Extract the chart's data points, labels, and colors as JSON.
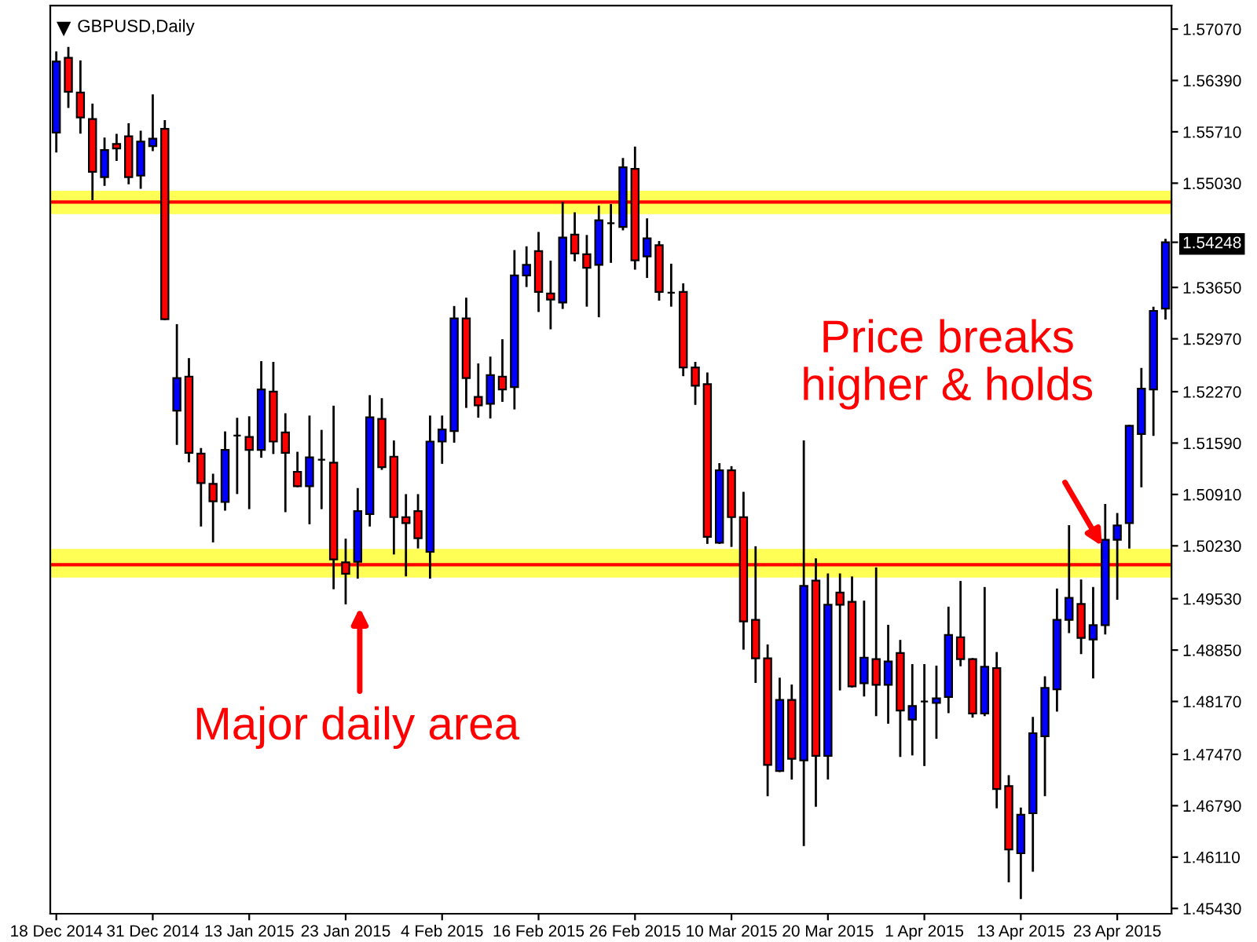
{
  "chart_data": {
    "type": "candlestick",
    "title": "GBPUSD,Daily",
    "categories": [
      "18 Dec 2014",
      null,
      null,
      null,
      null,
      null,
      null,
      null,
      "31 Dec 2014",
      null,
      null,
      null,
      null,
      null,
      null,
      null,
      "13 Jan 2015",
      null,
      null,
      null,
      null,
      null,
      null,
      null,
      "23 Jan 2015",
      null,
      null,
      null,
      null,
      null,
      null,
      null,
      "4 Feb 2015",
      null,
      null,
      null,
      null,
      null,
      null,
      null,
      "16 Feb 2015",
      null,
      null,
      null,
      null,
      null,
      null,
      null,
      "26 Feb 2015",
      null,
      null,
      null,
      null,
      null,
      null,
      null,
      "10 Mar 2015",
      null,
      null,
      null,
      null,
      null,
      null,
      null,
      "20 Mar 2015",
      null,
      null,
      null,
      null,
      null,
      null,
      null,
      "1 Apr 2015",
      null,
      null,
      null,
      null,
      null,
      null,
      null,
      "13 Apr 2015",
      null,
      null,
      null,
      null,
      null,
      null,
      null,
      "23 Apr 2015",
      null,
      null,
      null,
      null
    ],
    "ohlc": [
      [
        1.557,
        1.5676,
        1.5545,
        1.5664
      ],
      [
        1.5669,
        1.5682,
        1.5604,
        1.5624
      ],
      [
        1.5623,
        1.5664,
        1.557,
        1.559
      ],
      [
        1.5588,
        1.5607,
        1.5482,
        1.5518
      ],
      [
        1.5511,
        1.5562,
        1.5501,
        1.5547
      ],
      [
        1.5555,
        1.5567,
        1.5534,
        1.5549
      ],
      [
        1.5565,
        1.5581,
        1.5503,
        1.5511
      ],
      [
        1.5513,
        1.5571,
        1.5497,
        1.5558
      ],
      [
        1.5552,
        1.5619,
        1.5547,
        1.5562
      ],
      [
        1.5575,
        1.5585,
        1.5323,
        1.5323
      ],
      [
        1.5202,
        1.5315,
        1.5158,
        1.5245
      ],
      [
        1.5247,
        1.527,
        1.5135,
        1.5146
      ],
      [
        1.5145,
        1.5151,
        1.505,
        1.5106
      ],
      [
        1.5105,
        1.5117,
        1.5029,
        1.5082
      ],
      [
        1.5081,
        1.5173,
        1.5071,
        1.515
      ],
      [
        1.5169,
        1.5191,
        1.5093,
        1.5169
      ],
      [
        1.5167,
        1.5193,
        1.5073,
        1.515
      ],
      [
        1.515,
        1.5266,
        1.5141,
        1.523
      ],
      [
        1.5227,
        1.5265,
        1.5146,
        1.5161
      ],
      [
        1.5173,
        1.5197,
        1.5069,
        1.5146
      ],
      [
        1.5121,
        1.5146,
        1.5102,
        1.5102
      ],
      [
        1.5102,
        1.5194,
        1.5053,
        1.514
      ],
      [
        1.5137,
        1.5175,
        1.5073,
        1.5137
      ],
      [
        1.5133,
        1.5207,
        1.4967,
        1.5005
      ],
      [
        1.5001,
        1.5031,
        1.4947,
        1.4986
      ],
      [
        1.5002,
        1.5098,
        1.4981,
        1.5069
      ],
      [
        1.5065,
        1.5221,
        1.505,
        1.5193
      ],
      [
        1.5191,
        1.5217,
        1.5125,
        1.5127
      ],
      [
        1.5141,
        1.5161,
        1.5013,
        1.5061
      ],
      [
        1.5061,
        1.509,
        1.4984,
        1.5053
      ],
      [
        1.5069,
        1.509,
        1.5021,
        1.5033
      ],
      [
        1.5015,
        1.5194,
        1.4981,
        1.5161
      ],
      [
        1.5161,
        1.5194,
        1.5133,
        1.5177
      ],
      [
        1.5175,
        1.5339,
        1.5161,
        1.5324
      ],
      [
        1.5324,
        1.535,
        1.5207,
        1.5245
      ],
      [
        1.522,
        1.5263,
        1.5194,
        1.5209
      ],
      [
        1.5211,
        1.5272,
        1.5193,
        1.5249
      ],
      [
        1.5247,
        1.5295,
        1.5215,
        1.523
      ],
      [
        1.5233,
        1.5413,
        1.5205,
        1.5381
      ],
      [
        1.5381,
        1.5418,
        1.5367,
        1.5395
      ],
      [
        1.5413,
        1.5437,
        1.5334,
        1.5359
      ],
      [
        1.5357,
        1.5399,
        1.5311,
        1.5349
      ],
      [
        1.5345,
        1.5477,
        1.5338,
        1.5431
      ],
      [
        1.5435,
        1.5463,
        1.5401,
        1.541
      ],
      [
        1.5409,
        1.5433,
        1.5341,
        1.5391
      ],
      [
        1.5395,
        1.5472,
        1.5327,
        1.5454
      ],
      [
        1.545,
        1.5474,
        1.5399,
        1.545
      ],
      [
        1.5445,
        1.5535,
        1.5442,
        1.5524
      ],
      [
        1.5522,
        1.555,
        1.539,
        1.5401
      ],
      [
        1.5406,
        1.5455,
        1.5379,
        1.543
      ],
      [
        1.5421,
        1.5425,
        1.5349,
        1.5359
      ],
      [
        1.5358,
        1.5395,
        1.5341,
        1.5358
      ],
      [
        1.5359,
        1.5369,
        1.5249,
        1.5259
      ],
      [
        1.5259,
        1.5265,
        1.5211,
        1.5235
      ],
      [
        1.5237,
        1.5251,
        1.5027,
        1.5035
      ],
      [
        1.5027,
        1.5131,
        1.5027,
        1.5123
      ],
      [
        1.5123,
        1.5127,
        1.5023,
        1.5061
      ],
      [
        1.5061,
        1.5093,
        1.4887,
        1.4923
      ],
      [
        1.4925,
        1.5021,
        1.4843,
        1.4874
      ],
      [
        1.4874,
        1.4891,
        1.4693,
        1.4733
      ],
      [
        1.4725,
        1.4847,
        1.4725,
        1.4819
      ],
      [
        1.4819,
        1.4838,
        1.4715,
        1.4741
      ],
      [
        1.4739,
        1.5161,
        1.4627,
        1.497
      ],
      [
        1.4977,
        1.5005,
        1.4679,
        1.4745
      ],
      [
        1.4745,
        1.4985,
        1.4715,
        1.4945
      ],
      [
        1.4961,
        1.4985,
        1.4833,
        1.4945
      ],
      [
        1.4949,
        1.4981,
        1.4837,
        1.4837
      ],
      [
        1.4841,
        1.4949,
        1.4825,
        1.4875
      ],
      [
        1.4873,
        1.4993,
        1.4799,
        1.4839
      ],
      [
        1.4839,
        1.4917,
        1.4789,
        1.487
      ],
      [
        1.4881,
        1.4897,
        1.4745,
        1.4805
      ],
      [
        1.4793,
        1.4865,
        1.4747,
        1.4811
      ],
      [
        1.4817,
        1.4865,
        1.4733,
        1.4817
      ],
      [
        1.4815,
        1.4863,
        1.4769,
        1.4821
      ],
      [
        1.4823,
        1.4941,
        1.4803,
        1.4905
      ],
      [
        1.4902,
        1.4975,
        1.4865,
        1.4873
      ],
      [
        1.4873,
        1.4873,
        1.4797,
        1.4801
      ],
      [
        1.4801,
        1.4967,
        1.4799,
        1.4863
      ],
      [
        1.4861,
        1.4881,
        1.4677,
        1.4701
      ],
      [
        1.4705,
        1.4718,
        1.4579,
        1.4621
      ],
      [
        1.4616,
        1.4675,
        1.4557,
        1.4667
      ],
      [
        1.4669,
        1.4795,
        1.4593,
        1.4775
      ],
      [
        1.4771,
        1.4849,
        1.4693,
        1.4835
      ],
      [
        1.4833,
        1.4965,
        1.4805,
        1.4925
      ],
      [
        1.4925,
        1.5049,
        1.4909,
        1.4954
      ],
      [
        1.4946,
        1.4977,
        1.4881,
        1.4901
      ],
      [
        1.4899,
        1.4967,
        1.4849,
        1.4918
      ],
      [
        1.4918,
        1.5077,
        1.4907,
        1.5031
      ],
      [
        1.5031,
        1.5065,
        1.4953,
        1.505
      ],
      [
        1.5053,
        1.5182,
        1.5021,
        1.5182
      ],
      [
        1.5171,
        1.5257,
        1.5102,
        1.5231
      ],
      [
        1.523,
        1.5338,
        1.517,
        1.5334
      ],
      [
        1.5337,
        1.5428,
        1.5324,
        1.54248
      ]
    ],
    "colors": [
      "#0000ff",
      "#ff0000",
      "#ff0000",
      "#ff0000",
      "#0000ff",
      "#ff0000",
      "#ff0000",
      "#0000ff",
      "#0000ff",
      "#ff0000",
      "#0000ff",
      "#ff0000",
      "#ff0000",
      "#ff0000",
      "#0000ff",
      "#000000",
      "#ff0000",
      "#0000ff",
      "#ff0000",
      "#ff0000",
      "#ff0000",
      "#0000ff",
      "#000000",
      "#ff0000",
      "#ff0000",
      "#0000ff",
      "#0000ff",
      "#ff0000",
      "#ff0000",
      "#ff0000",
      "#ff0000",
      "#0000ff",
      "#0000ff",
      "#0000ff",
      "#ff0000",
      "#ff0000",
      "#0000ff",
      "#ff0000",
      "#0000ff",
      "#0000ff",
      "#ff0000",
      "#ff0000",
      "#0000ff",
      "#ff0000",
      "#ff0000",
      "#0000ff",
      "#000000",
      "#0000ff",
      "#ff0000",
      "#0000ff",
      "#ff0000",
      "#000000",
      "#ff0000",
      "#ff0000",
      "#ff0000",
      "#0000ff",
      "#ff0000",
      "#ff0000",
      "#ff0000",
      "#ff0000",
      "#0000ff",
      "#ff0000",
      "#0000ff",
      "#ff0000",
      "#0000ff",
      "#ff0000",
      "#ff0000",
      "#0000ff",
      "#ff0000",
      "#0000ff",
      "#ff0000",
      "#0000ff",
      "#000000",
      "#0000ff",
      "#0000ff",
      "#ff0000",
      "#ff0000",
      "#0000ff",
      "#ff0000",
      "#ff0000",
      "#0000ff",
      "#0000ff",
      "#0000ff",
      "#0000ff",
      "#0000ff",
      "#ff0000",
      "#0000ff",
      "#0000ff",
      "#0000ff",
      "#0000ff",
      "#0000ff",
      "#0000ff",
      "#0000ff"
    ],
    "ylim": [
      1.4536,
      1.5738
    ],
    "yticks": [
      {
        "value": 1.5707,
        "label": "1.57070"
      },
      {
        "value": 1.5639,
        "label": "1.56390"
      },
      {
        "value": 1.5571,
        "label": "1.55710"
      },
      {
        "value": 1.5503,
        "label": "1.55030"
      },
      {
        "value": 1.54248,
        "label": "1.54248"
      },
      {
        "value": 1.5365,
        "label": "1.53650"
      },
      {
        "value": 1.5297,
        "label": "1.52970"
      },
      {
        "value": 1.5227,
        "label": "1.52270"
      },
      {
        "value": 1.5159,
        "label": "1.51590"
      },
      {
        "value": 1.5091,
        "label": "1.50910"
      },
      {
        "value": 1.5023,
        "label": "1.50230"
      },
      {
        "value": 1.4953,
        "label": "1.49530"
      },
      {
        "value": 1.4885,
        "label": "1.48850"
      },
      {
        "value": 1.4817,
        "label": "1.48170"
      },
      {
        "value": 1.4747,
        "label": "1.47470"
      },
      {
        "value": 1.4679,
        "label": "1.46790"
      },
      {
        "value": 1.4611,
        "label": "1.46110"
      },
      {
        "value": 1.4543,
        "label": "1.45430"
      }
    ],
    "ref_lines": [
      {
        "axis": "y",
        "value": 1.5478,
        "color": "#ff0000"
      },
      {
        "axis": "y",
        "value": 1.4998,
        "color": "#ff0000"
      }
    ],
    "bands": [
      {
        "axis": "y",
        "from": 1.5462,
        "to": 1.5493,
        "color": "#ffff55"
      },
      {
        "axis": "y",
        "from": 1.4981,
        "to": 1.5019,
        "color": "#ffff55"
      }
    ],
    "annotations": [
      "Major daily area",
      "Price breaks\nhigher & holds"
    ],
    "grid": false,
    "legend": false
  }
}
